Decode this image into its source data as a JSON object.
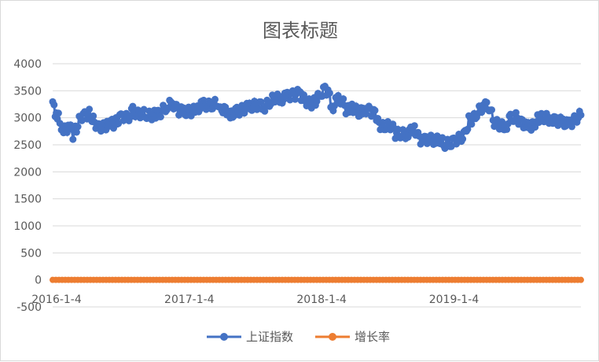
{
  "chart_data": {
    "type": "line",
    "title": "图表标题",
    "xlabel": "",
    "ylabel": "",
    "ylim": [
      -500,
      4000
    ],
    "yticks": [
      -500,
      0,
      500,
      1000,
      1500,
      2000,
      2500,
      3000,
      3500,
      4000
    ],
    "y_tick_labels": [
      "-500",
      "0",
      "500",
      "1000",
      "1500",
      "2000",
      "2500",
      "3000",
      "3500",
      "4000"
    ],
    "x_tick_labels": [
      "2016-1-4",
      "2017-1-4",
      "2018-1-4",
      "2019-1-4"
    ],
    "xlim": [
      "2016-01-04",
      "2019-12-31"
    ],
    "grid": true,
    "legend_position": "bottom",
    "series": [
      {
        "name": "上证指数",
        "color": "#4472C4",
        "marker": "circle",
        "points": [
          [
            "2016-01-04",
            3296
          ],
          [
            "2016-01-08",
            3186
          ],
          [
            "2016-01-14",
            3007
          ],
          [
            "2016-01-20",
            3008
          ],
          [
            "2016-01-28",
            2735
          ],
          [
            "2016-02-03",
            2739
          ],
          [
            "2016-02-19",
            2861
          ],
          [
            "2016-02-29",
            2688
          ],
          [
            "2016-03-10",
            2804
          ],
          [
            "2016-03-21",
            3018
          ],
          [
            "2016-04-05",
            3053
          ],
          [
            "2016-04-14",
            3082
          ],
          [
            "2016-04-25",
            2946
          ],
          [
            "2016-05-09",
            2832
          ],
          [
            "2016-05-20",
            2826
          ],
          [
            "2016-05-30",
            2822
          ],
          [
            "2016-06-08",
            2927
          ],
          [
            "2016-06-20",
            2888
          ],
          [
            "2016-06-30",
            2930
          ],
          [
            "2016-07-14",
            3054
          ],
          [
            "2016-07-29",
            2979
          ],
          [
            "2016-08-12",
            3125
          ],
          [
            "2016-08-26",
            3070
          ],
          [
            "2016-09-08",
            3095
          ],
          [
            "2016-09-23",
            3033
          ],
          [
            "2016-10-14",
            3064
          ],
          [
            "2016-10-28",
            3104
          ],
          [
            "2016-11-14",
            3211
          ],
          [
            "2016-11-29",
            3282
          ],
          [
            "2016-12-14",
            3140
          ],
          [
            "2016-12-30",
            3104
          ],
          [
            "2017-01-13",
            3112
          ],
          [
            "2017-02-03",
            3140
          ],
          [
            "2017-02-20",
            3240
          ],
          [
            "2017-03-06",
            3233
          ],
          [
            "2017-03-20",
            3251
          ],
          [
            "2017-04-06",
            3281
          ],
          [
            "2017-04-14",
            3175
          ],
          [
            "2017-05-05",
            3103
          ],
          [
            "2017-05-11",
            3062
          ],
          [
            "2017-05-26",
            3107
          ],
          [
            "2017-06-09",
            3158
          ],
          [
            "2017-06-26",
            3185
          ],
          [
            "2017-07-10",
            3212
          ],
          [
            "2017-07-24",
            3250
          ],
          [
            "2017-08-11",
            3208
          ],
          [
            "2017-08-24",
            3271
          ],
          [
            "2017-09-05",
            3384
          ],
          [
            "2017-09-25",
            3341
          ],
          [
            "2017-10-12",
            3390
          ],
          [
            "2017-10-27",
            3416
          ],
          [
            "2017-11-13",
            3447
          ],
          [
            "2017-11-23",
            3351
          ],
          [
            "2017-12-08",
            3289
          ],
          [
            "2017-12-18",
            3267
          ],
          [
            "2017-12-29",
            3307
          ],
          [
            "2018-01-12",
            3429
          ],
          [
            "2018-01-24",
            3560
          ],
          [
            "2018-02-01",
            3447
          ],
          [
            "2018-02-06",
            3370
          ],
          [
            "2018-02-09",
            3129
          ],
          [
            "2018-02-26",
            3329
          ],
          [
            "2018-03-12",
            3326
          ],
          [
            "2018-03-23",
            3152
          ],
          [
            "2018-04-12",
            3180
          ],
          [
            "2018-04-27",
            3082
          ],
          [
            "2018-05-14",
            3174
          ],
          [
            "2018-05-29",
            3121
          ],
          [
            "2018-06-11",
            3052
          ],
          [
            "2018-06-19",
            2908
          ],
          [
            "2018-06-29",
            2847
          ],
          [
            "2018-07-13",
            2832
          ],
          [
            "2018-07-27",
            2873
          ],
          [
            "2018-08-06",
            2705
          ],
          [
            "2018-08-20",
            2698
          ],
          [
            "2018-09-07",
            2702
          ],
          [
            "2018-09-28",
            2821
          ],
          [
            "2018-10-11",
            2583
          ],
          [
            "2018-10-19",
            2550
          ],
          [
            "2018-10-26",
            2598
          ],
          [
            "2018-11-09",
            2599
          ],
          [
            "2018-11-26",
            2575
          ],
          [
            "2018-12-07",
            2605
          ],
          [
            "2018-12-21",
            2516
          ],
          [
            "2019-01-04",
            2514
          ],
          [
            "2019-01-18",
            2596
          ],
          [
            "2019-02-01",
            2618
          ],
          [
            "2019-02-15",
            2682
          ],
          [
            "2019-02-25",
            2961
          ],
          [
            "2019-03-08",
            2969
          ],
          [
            "2019-03-22",
            3104
          ],
          [
            "2019-04-08",
            3244
          ],
          [
            "2019-04-22",
            3215
          ],
          [
            "2019-05-06",
            2907
          ],
          [
            "2019-05-17",
            2882
          ],
          [
            "2019-06-06",
            2827
          ],
          [
            "2019-06-20",
            2987
          ],
          [
            "2019-07-05",
            3011
          ],
          [
            "2019-07-19",
            2924
          ],
          [
            "2019-08-05",
            2821
          ],
          [
            "2019-08-16",
            2823
          ],
          [
            "2019-09-06",
            2999
          ],
          [
            "2019-09-20",
            3006
          ],
          [
            "2019-10-11",
            2973
          ],
          [
            "2019-10-25",
            2954
          ],
          [
            "2019-11-12",
            2910
          ],
          [
            "2019-11-29",
            2871
          ],
          [
            "2019-12-13",
            2967
          ],
          [
            "2019-12-31",
            3050
          ]
        ]
      },
      {
        "name": "增长率",
        "color": "#ED7D31",
        "marker": "circle",
        "constant_value": 0
      }
    ]
  }
}
